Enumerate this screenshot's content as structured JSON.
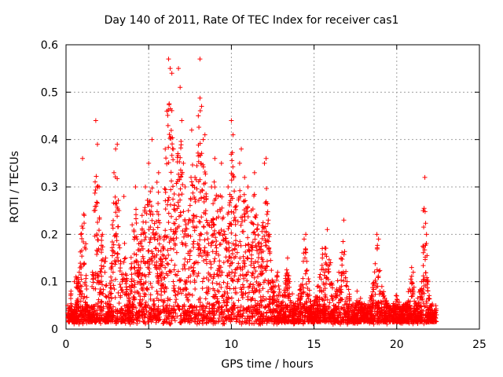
{
  "chart_data": {
    "type": "scatter",
    "title": "Day 140 of 2011, Rate Of TEC Index for receiver cas1",
    "xlabel": "GPS time / hours",
    "ylabel": "ROTI / TECUs",
    "xlim": [
      0,
      25
    ],
    "ylim": [
      0,
      0.6
    ],
    "xticks": [
      "0",
      "5",
      "10",
      "15",
      "20",
      "25"
    ],
    "yticks": [
      "0",
      "0.1",
      "0.2",
      "0.3",
      "0.4",
      "0.5",
      "0.6"
    ],
    "grid": true,
    "marker": "plus",
    "color": "#ff0000",
    "series": [
      {
        "values": [
          [
            0.1,
            0.05
          ],
          [
            0.2,
            0.03
          ],
          [
            0.3,
            0.08
          ],
          [
            0.4,
            0.02
          ],
          [
            0.5,
            0.1
          ],
          [
            0.6,
            0.11
          ],
          [
            0.8,
            0.12
          ],
          [
            0.9,
            0.2
          ],
          [
            1.0,
            0.36
          ],
          [
            1.1,
            0.24
          ],
          [
            1.2,
            0.18
          ],
          [
            1.3,
            0.04
          ],
          [
            1.5,
            0.02
          ],
          [
            1.6,
            0.12
          ],
          [
            1.7,
            0.25
          ],
          [
            1.8,
            0.44
          ],
          [
            1.9,
            0.39
          ],
          [
            2.0,
            0.3
          ],
          [
            2.2,
            0.2
          ],
          [
            2.4,
            0.15
          ],
          [
            2.6,
            0.05
          ],
          [
            2.8,
            0.22
          ],
          [
            2.9,
            0.33
          ],
          [
            3.0,
            0.38
          ],
          [
            3.1,
            0.39
          ],
          [
            3.2,
            0.25
          ],
          [
            3.4,
            0.1
          ],
          [
            3.5,
            0.28
          ],
          [
            3.6,
            0.15
          ],
          [
            3.8,
            0.06
          ],
          [
            4.0,
            0.22
          ],
          [
            4.2,
            0.3
          ],
          [
            4.4,
            0.18
          ],
          [
            4.6,
            0.24
          ],
          [
            4.8,
            0.3
          ],
          [
            5.0,
            0.35
          ],
          [
            5.1,
            0.29
          ],
          [
            5.2,
            0.4
          ],
          [
            5.4,
            0.2
          ],
          [
            5.5,
            0.31
          ],
          [
            5.6,
            0.33
          ],
          [
            5.8,
            0.12
          ],
          [
            6.0,
            0.38
          ],
          [
            6.1,
            0.46
          ],
          [
            6.2,
            0.57
          ],
          [
            6.3,
            0.55
          ],
          [
            6.4,
            0.54
          ],
          [
            6.5,
            0.38
          ],
          [
            6.6,
            0.25
          ],
          [
            6.8,
            0.55
          ],
          [
            6.9,
            0.51
          ],
          [
            7.0,
            0.44
          ],
          [
            7.1,
            0.35
          ],
          [
            7.2,
            0.3
          ],
          [
            7.4,
            0.25
          ],
          [
            7.6,
            0.42
          ],
          [
            7.8,
            0.32
          ],
          [
            8.0,
            0.45
          ],
          [
            8.1,
            0.57
          ],
          [
            8.2,
            0.47
          ],
          [
            8.3,
            0.4
          ],
          [
            8.4,
            0.41
          ],
          [
            8.6,
            0.22
          ],
          [
            8.8,
            0.3
          ],
          [
            9.0,
            0.36
          ],
          [
            9.2,
            0.28
          ],
          [
            9.4,
            0.35
          ],
          [
            9.6,
            0.2
          ],
          [
            9.8,
            0.3
          ],
          [
            10.0,
            0.44
          ],
          [
            10.1,
            0.41
          ],
          [
            10.3,
            0.26
          ],
          [
            10.5,
            0.35
          ],
          [
            10.6,
            0.38
          ],
          [
            10.8,
            0.32
          ],
          [
            11.0,
            0.3
          ],
          [
            11.2,
            0.25
          ],
          [
            11.4,
            0.33
          ],
          [
            11.6,
            0.22
          ],
          [
            11.8,
            0.18
          ],
          [
            12.0,
            0.35
          ],
          [
            12.1,
            0.36
          ],
          [
            12.3,
            0.2
          ],
          [
            12.5,
            0.1
          ],
          [
            12.8,
            0.12
          ],
          [
            13.0,
            0.05
          ],
          [
            13.4,
            0.15
          ],
          [
            13.8,
            0.04
          ],
          [
            14.2,
            0.09
          ],
          [
            14.4,
            0.19
          ],
          [
            14.5,
            0.2
          ],
          [
            14.7,
            0.1
          ],
          [
            14.9,
            0.03
          ],
          [
            15.2,
            0.09
          ],
          [
            15.5,
            0.17
          ],
          [
            15.8,
            0.21
          ],
          [
            16.0,
            0.14
          ],
          [
            16.2,
            0.05
          ],
          [
            16.5,
            0.12
          ],
          [
            16.8,
            0.23
          ],
          [
            17.0,
            0.1
          ],
          [
            17.3,
            0.04
          ],
          [
            17.6,
            0.08
          ],
          [
            17.9,
            0.05
          ],
          [
            18.2,
            0.04
          ],
          [
            18.5,
            0.07
          ],
          [
            18.8,
            0.2
          ],
          [
            18.9,
            0.19
          ],
          [
            19.1,
            0.09
          ],
          [
            19.4,
            0.05
          ],
          [
            19.7,
            0.04
          ],
          [
            20.0,
            0.07
          ],
          [
            20.3,
            0.04
          ],
          [
            20.6,
            0.05
          ],
          [
            20.9,
            0.13
          ],
          [
            21.0,
            0.12
          ],
          [
            21.2,
            0.05
          ],
          [
            21.5,
            0.1
          ],
          [
            21.6,
            0.25
          ],
          [
            21.7,
            0.32
          ],
          [
            21.8,
            0.2
          ],
          [
            21.9,
            0.1
          ],
          [
            22.1,
            0.05
          ],
          [
            22.3,
            0.04
          ],
          [
            22.4,
            0.03
          ]
        ]
      }
    ]
  }
}
